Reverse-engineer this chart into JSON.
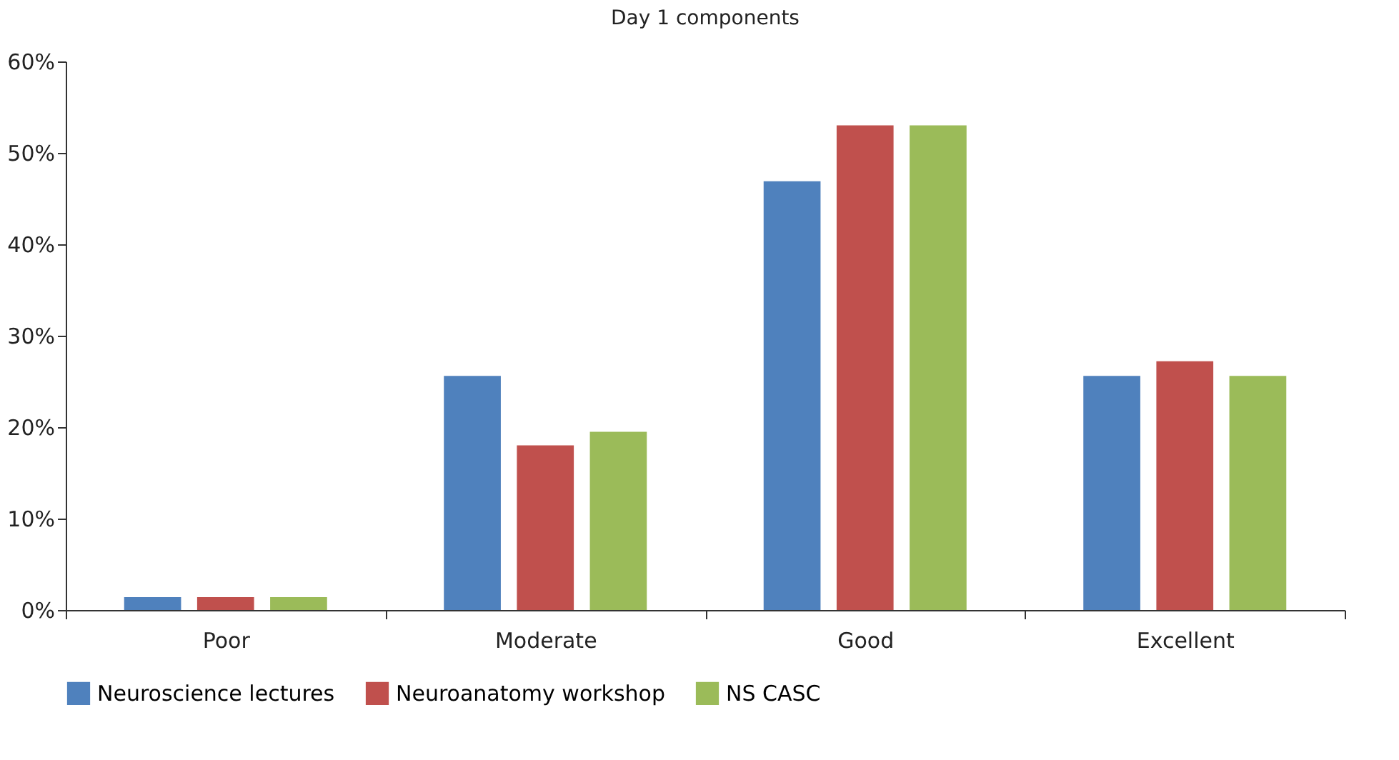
{
  "chart_data": {
    "type": "bar",
    "title": "Day 1 components",
    "categories": [
      "Poor",
      "Moderate",
      "Good",
      "Excellent"
    ],
    "series": [
      {
        "name": "Neuroscience lectures",
        "color": "#4f81bd",
        "values": [
          1.4,
          25.6,
          46.9,
          25.6
        ]
      },
      {
        "name": "Neuroanatomy workshop",
        "color": "#c0504d",
        "values": [
          1.4,
          18.0,
          53.0,
          27.2
        ]
      },
      {
        "name": "NS CASC",
        "color": "#9bbb59",
        "values": [
          1.4,
          19.5,
          53.0,
          25.6
        ]
      }
    ],
    "ylim": [
      0,
      60
    ],
    "yticks": [
      {
        "value": 0,
        "label": "0%"
      },
      {
        "value": 10,
        "label": "10%"
      },
      {
        "value": 20,
        "label": "20%"
      },
      {
        "value": 30,
        "label": "30%"
      },
      {
        "value": 40,
        "label": "40%"
      },
      {
        "value": 50,
        "label": "50%"
      },
      {
        "value": 60,
        "label": "60%"
      }
    ],
    "grid": false,
    "legend": "bottom"
  }
}
